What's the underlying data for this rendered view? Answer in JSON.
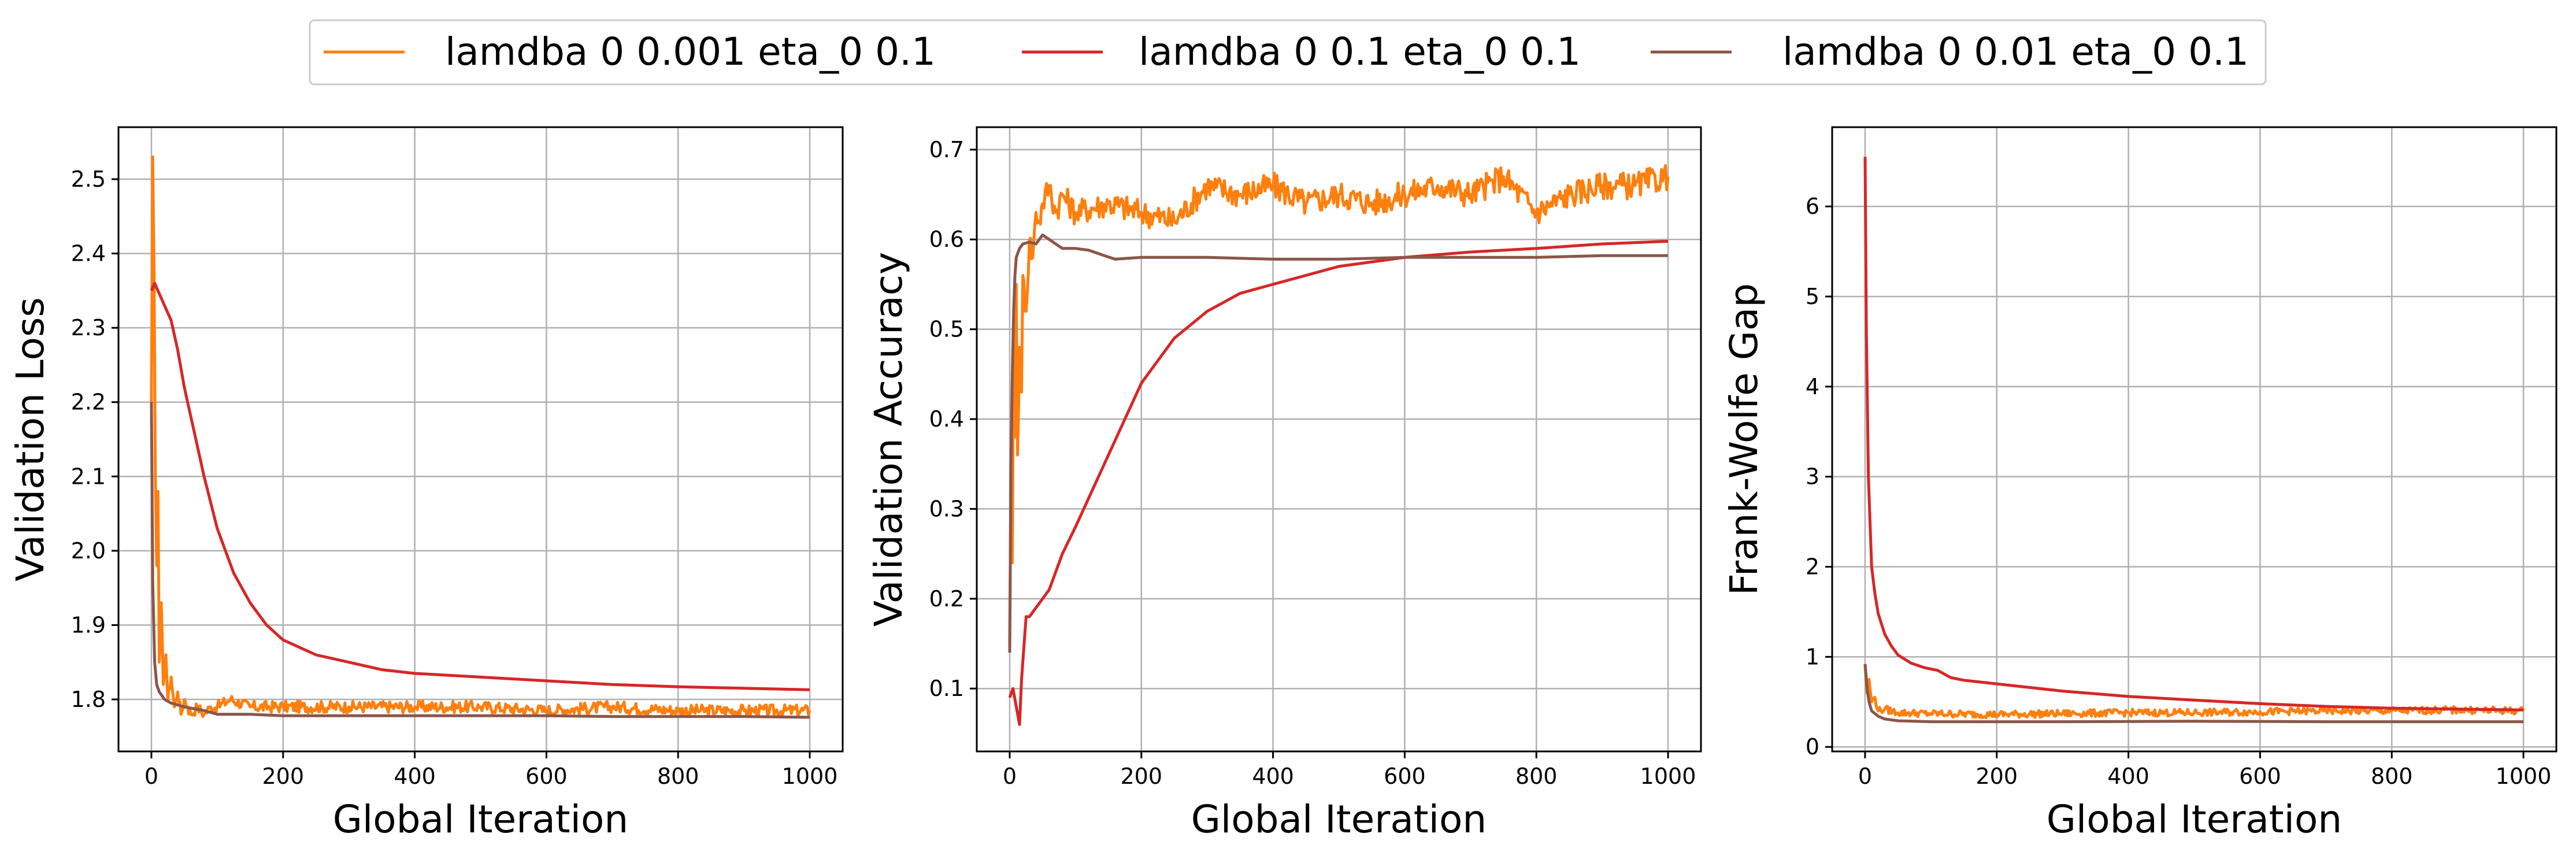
{
  "legend": {
    "items": [
      {
        "label": "lamdba 0 0.001 eta_0 0.1",
        "color": "#ff7f0e"
      },
      {
        "label": "lamdba 0 0.1 eta_0 0.1",
        "color": "#d62728"
      },
      {
        "label": "lamdba 0 0.01 eta_0 0.1",
        "color": "#8c564b"
      }
    ]
  },
  "chart_data": [
    {
      "type": "line",
      "xlabel": "Global Iteration",
      "ylabel": "Validation Loss",
      "xlim": [
        -50,
        1050
      ],
      "ylim": [
        1.73,
        2.57
      ],
      "xticks": [
        0,
        200,
        400,
        600,
        800,
        1000
      ],
      "yticks": [
        1.8,
        1.9,
        2.0,
        2.1,
        2.2,
        2.3,
        2.4,
        2.5
      ],
      "ytick_labels": [
        "1.8",
        "1.9",
        "2.0",
        "2.1",
        "2.2",
        "2.3",
        "2.4",
        "2.5"
      ],
      "grid": true,
      "series": [
        {
          "name": "lamdba 0 0.001 eta_0 0.1",
          "color": "#ff7f0e",
          "noise": 0.008,
          "x": [
            0,
            2,
            4,
            6,
            8,
            10,
            12,
            15,
            18,
            22,
            25,
            30,
            35,
            40,
            45,
            50,
            55,
            60,
            70,
            80,
            90,
            100,
            120,
            150,
            200,
            300,
            400,
            500,
            600,
            700,
            800,
            900,
            1000
          ],
          "y": [
            2.2,
            2.53,
            2.38,
            2.1,
            1.98,
            2.08,
            1.85,
            1.93,
            1.82,
            1.86,
            1.8,
            1.83,
            1.79,
            1.81,
            1.78,
            1.8,
            1.79,
            1.78,
            1.79,
            1.78,
            1.79,
            1.79,
            1.8,
            1.79,
            1.79,
            1.79,
            1.79,
            1.79,
            1.785,
            1.79,
            1.785,
            1.785,
            1.785
          ]
        },
        {
          "name": "lamdba 0 0.1 eta_0 0.1",
          "color": "#d62728",
          "x": [
            0,
            5,
            10,
            20,
            30,
            40,
            50,
            60,
            80,
            100,
            125,
            150,
            175,
            200,
            250,
            300,
            350,
            400,
            500,
            600,
            700,
            800,
            900,
            1000
          ],
          "y": [
            2.35,
            2.36,
            2.35,
            2.33,
            2.31,
            2.27,
            2.22,
            2.18,
            2.1,
            2.03,
            1.97,
            1.93,
            1.9,
            1.88,
            1.86,
            1.85,
            1.84,
            1.835,
            1.83,
            1.825,
            1.82,
            1.817,
            1.815,
            1.813
          ]
        },
        {
          "name": "lamdba 0 0.01 eta_0 0.1",
          "color": "#8c564b",
          "x": [
            0,
            2,
            5,
            8,
            12,
            20,
            30,
            50,
            80,
            100,
            150,
            200,
            300,
            400,
            500,
            600,
            700,
            800,
            900,
            1000
          ],
          "y": [
            2.2,
            1.96,
            1.85,
            1.82,
            1.81,
            1.8,
            1.795,
            1.79,
            1.785,
            1.78,
            1.78,
            1.778,
            1.778,
            1.778,
            1.778,
            1.778,
            1.777,
            1.777,
            1.777,
            1.776
          ]
        }
      ]
    },
    {
      "type": "line",
      "xlabel": "Global Iteration",
      "ylabel": "Validation Accuracy",
      "xlim": [
        -50,
        1050
      ],
      "ylim": [
        0.03,
        0.725
      ],
      "xticks": [
        0,
        200,
        400,
        600,
        800,
        1000
      ],
      "yticks": [
        0.1,
        0.2,
        0.3,
        0.4,
        0.5,
        0.6,
        0.7
      ],
      "ytick_labels": [
        "0.1",
        "0.2",
        "0.3",
        "0.4",
        "0.5",
        "0.6",
        "0.7"
      ],
      "grid": true,
      "series": [
        {
          "name": "lamdba 0 0.001 eta_0 0.1",
          "color": "#ff7f0e",
          "noise": 0.015,
          "x": [
            0,
            2,
            4,
            6,
            8,
            10,
            12,
            15,
            18,
            20,
            25,
            30,
            35,
            40,
            45,
            50,
            60,
            70,
            80,
            100,
            150,
            200,
            250,
            300,
            350,
            400,
            450,
            500,
            550,
            600,
            650,
            700,
            750,
            800,
            850,
            900,
            950,
            1000
          ],
          "y": [
            0.15,
            0.35,
            0.24,
            0.5,
            0.38,
            0.55,
            0.36,
            0.48,
            0.43,
            0.56,
            0.52,
            0.6,
            0.58,
            0.63,
            0.62,
            0.64,
            0.66,
            0.63,
            0.65,
            0.63,
            0.64,
            0.63,
            0.62,
            0.66,
            0.65,
            0.66,
            0.64,
            0.65,
            0.64,
            0.65,
            0.66,
            0.65,
            0.67,
            0.63,
            0.65,
            0.66,
            0.66,
            0.67
          ]
        },
        {
          "name": "lamdba 0 0.1 eta_0 0.1",
          "color": "#d62728",
          "x": [
            0,
            5,
            10,
            15,
            18,
            20,
            25,
            30,
            40,
            50,
            60,
            70,
            80,
            100,
            125,
            150,
            175,
            200,
            250,
            300,
            350,
            400,
            500,
            600,
            700,
            800,
            900,
            1000
          ],
          "y": [
            0.09,
            0.1,
            0.08,
            0.06,
            0.11,
            0.13,
            0.18,
            0.18,
            0.19,
            0.2,
            0.21,
            0.23,
            0.25,
            0.28,
            0.32,
            0.36,
            0.4,
            0.44,
            0.49,
            0.52,
            0.54,
            0.55,
            0.57,
            0.58,
            0.586,
            0.59,
            0.595,
            0.598
          ]
        },
        {
          "name": "lamdba 0 0.01 eta_0 0.1",
          "color": "#8c564b",
          "x": [
            0,
            2,
            4,
            6,
            8,
            10,
            15,
            20,
            30,
            40,
            50,
            60,
            70,
            80,
            100,
            120,
            140,
            160,
            200,
            300,
            400,
            500,
            600,
            700,
            800,
            900,
            1000
          ],
          "y": [
            0.14,
            0.35,
            0.45,
            0.52,
            0.56,
            0.58,
            0.59,
            0.595,
            0.597,
            0.595,
            0.605,
            0.6,
            0.595,
            0.59,
            0.59,
            0.588,
            0.583,
            0.578,
            0.58,
            0.58,
            0.578,
            0.578,
            0.58,
            0.58,
            0.58,
            0.582,
            0.582
          ]
        }
      ]
    },
    {
      "type": "line",
      "xlabel": "Global Iteration",
      "ylabel": "Frank-Wolfe Gap",
      "xlim": [
        -50,
        1050
      ],
      "ylim": [
        -0.05,
        6.88
      ],
      "xticks": [
        0,
        200,
        400,
        600,
        800,
        1000
      ],
      "yticks": [
        0,
        1,
        2,
        3,
        4,
        5,
        6
      ],
      "ytick_labels": [
        "0",
        "1",
        "2",
        "3",
        "4",
        "5",
        "6"
      ],
      "grid": true,
      "series": [
        {
          "name": "lamdba 0 0.001 eta_0 0.1",
          "color": "#ff7f0e",
          "noise": 0.04,
          "x": [
            0,
            3,
            6,
            10,
            15,
            20,
            30,
            50,
            100,
            200,
            300,
            400,
            500,
            600,
            700,
            800,
            900,
            1000
          ],
          "y": [
            0.9,
            0.6,
            0.75,
            0.5,
            0.55,
            0.4,
            0.42,
            0.38,
            0.37,
            0.36,
            0.37,
            0.38,
            0.38,
            0.39,
            0.4,
            0.4,
            0.41,
            0.4
          ]
        },
        {
          "name": "lamdba 0 0.1 eta_0 0.1",
          "color": "#d62728",
          "x": [
            0,
            2,
            5,
            10,
            15,
            20,
            30,
            40,
            50,
            70,
            90,
            110,
            130,
            150,
            200,
            300,
            400,
            500,
            600,
            700,
            800,
            900,
            1000
          ],
          "y": [
            6.55,
            4.6,
            3.0,
            2.0,
            1.7,
            1.48,
            1.25,
            1.12,
            1.02,
            0.93,
            0.88,
            0.85,
            0.77,
            0.74,
            0.7,
            0.62,
            0.56,
            0.52,
            0.48,
            0.45,
            0.43,
            0.42,
            0.41
          ]
        },
        {
          "name": "lamdba 0 0.01 eta_0 0.1",
          "color": "#8c564b",
          "x": [
            0,
            3,
            6,
            10,
            20,
            30,
            50,
            100,
            200,
            300,
            500,
            700,
            1000
          ],
          "y": [
            0.92,
            0.65,
            0.5,
            0.4,
            0.34,
            0.31,
            0.29,
            0.28,
            0.28,
            0.28,
            0.285,
            0.28,
            0.28
          ]
        }
      ]
    }
  ]
}
